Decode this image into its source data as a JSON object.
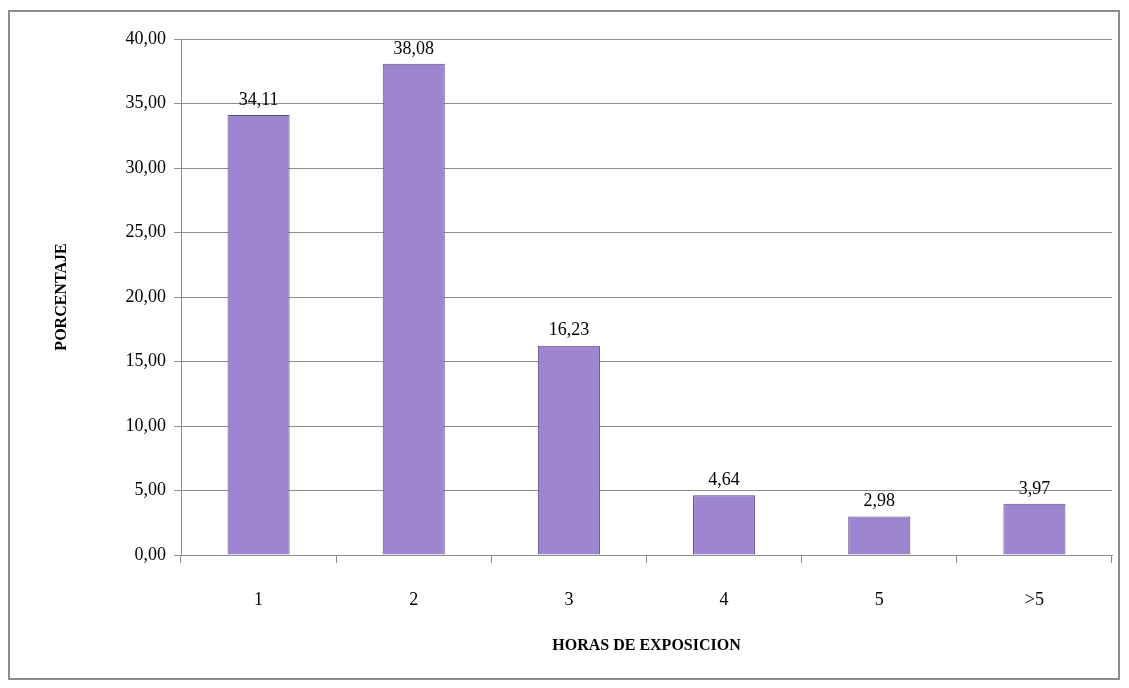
{
  "chart_data": {
    "type": "bar",
    "xlabel": "HORAS DE EXPOSICION",
    "ylabel": "PORCENTAJE",
    "categories": [
      "1",
      "2",
      "3",
      "4",
      "5",
      ">5"
    ],
    "values": [
      34.11,
      38.08,
      16.23,
      4.64,
      2.98,
      3.97
    ],
    "value_labels": [
      "34,11",
      "38,08",
      "16,23",
      "4,64",
      "2,98",
      "3,97"
    ],
    "color": "#9d85cf",
    "ylim": [
      0,
      40
    ],
    "yticks": [
      {
        "value": 0,
        "label": "0,00"
      },
      {
        "value": 5,
        "label": "5,00"
      },
      {
        "value": 10,
        "label": "10,00"
      },
      {
        "value": 15,
        "label": "15,00"
      },
      {
        "value": 20,
        "label": "20,00"
      },
      {
        "value": 25,
        "label": "25,00"
      },
      {
        "value": 30,
        "label": "30,00"
      },
      {
        "value": 35,
        "label": "35,00"
      },
      {
        "value": 40,
        "label": "40,00"
      }
    ],
    "grid": "y"
  }
}
